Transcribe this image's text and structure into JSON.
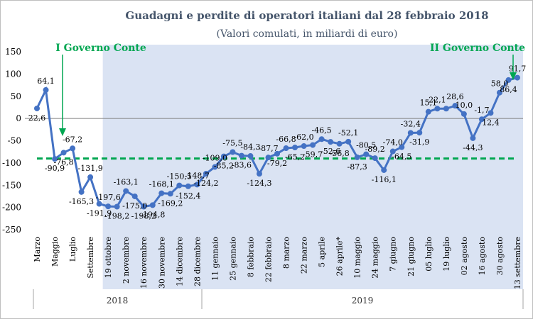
{
  "chart_data": {
    "type": "line",
    "title": "Guadagni e perdite di operatori italiani dal 28 febbraio 2018",
    "subtitle": "(Valori comulati, in miliardi di euro)",
    "ylim": [
      -250,
      150
    ],
    "yticks": [
      150,
      100,
      50,
      0,
      -50,
      -100,
      -150,
      -200,
      -250
    ],
    "grid": false,
    "colors": {
      "line": "#4472c4",
      "marker": "#4472c4",
      "reference_line": "#00a651",
      "shade": "#dae3f3",
      "annotation": "#00a651"
    },
    "series": [
      {
        "values": [
          22.6,
          64.1,
          -90.9,
          -76.8,
          -67.2,
          -165.3,
          -131.9,
          -191.9,
          -197.6,
          -198.2,
          -163.1,
          -175.0,
          -198.2,
          -194.8,
          -168.1,
          -169.2,
          -150.5,
          -152.4,
          -148.7,
          -124.2,
          -109.0,
          -85.2,
          -75.5,
          -83.6,
          -84.3,
          -124.3,
          -87.7,
          -79.2,
          -66.8,
          -65.2,
          -62.0,
          -59.7,
          -46.5,
          -52.6,
          -56.8,
          -52.1,
          -87.3,
          -80.5,
          -89.2,
          -116.1,
          -74.0,
          -64.5,
          -32.4,
          -31.9,
          15.1,
          22.1,
          22.1,
          28.6,
          10.0,
          -44.3,
          -1.7,
          12.4,
          58.0,
          86.4,
          91.7
        ],
        "labels": [
          "22,6",
          "64,1",
          "-90,9",
          "-76,8",
          "-67,2",
          "-165,3",
          "-131,9",
          "-191,9",
          "-197,6",
          "-198,2",
          "-163,1",
          "-175,0",
          "-198,2",
          "-194,8",
          "-168,1",
          "-169,2",
          "-150,5",
          "-152,4",
          "-148,7",
          "-124,2",
          "-109,0",
          "-85,2",
          "-75,5",
          "-83,6",
          "-84,3",
          "-124,3",
          "-87,7",
          "-79,2",
          "-66,8",
          "-65,2",
          "-62,0",
          "-59,7",
          "-46,5",
          "-52,6",
          "-56,8",
          "-52,1",
          "-87,3",
          "-80,5",
          "-89,2",
          "-116,1",
          "-74,0",
          "-64,5",
          "-32,4",
          "-31,9",
          "15,1",
          "22,1",
          "",
          "28,6",
          "10,0",
          "-44,3",
          "-1,7",
          "12,4",
          "58,0",
          "86,4",
          "91,7"
        ]
      }
    ],
    "reference_line_value": -90,
    "x_tick_labels": [
      {
        "i": 0,
        "label": "Marzo"
      },
      {
        "i": 2,
        "label": "Maggio"
      },
      {
        "i": 4,
        "label": "Luglio"
      },
      {
        "i": 6,
        "label": "Settembre"
      },
      {
        "i": 8,
        "label": "19 ottobre"
      },
      {
        "i": 10,
        "label": "2 novembre"
      },
      {
        "i": 12,
        "label": "16 novembre"
      },
      {
        "i": 14,
        "label": "30 novembre"
      },
      {
        "i": 16,
        "label": "14 dicembre"
      },
      {
        "i": 18,
        "label": "28 dicembre"
      },
      {
        "i": 20,
        "label": "11 gennaio"
      },
      {
        "i": 22,
        "label": "25 gennaio"
      },
      {
        "i": 24,
        "label": "8 febbraio"
      },
      {
        "i": 26,
        "label": "22 febbraio"
      },
      {
        "i": 28,
        "label": "8 marzo"
      },
      {
        "i": 30,
        "label": "22 marzo"
      },
      {
        "i": 32,
        "label": "5 aprile"
      },
      {
        "i": 34,
        "label": "26 aprile*"
      },
      {
        "i": 36,
        "label": "10 maggio"
      },
      {
        "i": 38,
        "label": "24 maggio"
      },
      {
        "i": 40,
        "label": "7 giugno"
      },
      {
        "i": 42,
        "label": "21 giugno"
      },
      {
        "i": 44,
        "label": "05 luglio"
      },
      {
        "i": 46,
        "label": "19 luglio"
      },
      {
        "i": 48,
        "label": "02 agosto"
      },
      {
        "i": 50,
        "label": "16 agosto"
      },
      {
        "i": 52,
        "label": "30 agosto"
      },
      {
        "i": 54,
        "label": "13 settembre"
      }
    ],
    "year_labels": [
      {
        "label": "2018"
      },
      {
        "label": "2019"
      }
    ],
    "annotations": [
      {
        "text": "I Governo Conte"
      },
      {
        "text": "II Governo Conte"
      }
    ]
  }
}
